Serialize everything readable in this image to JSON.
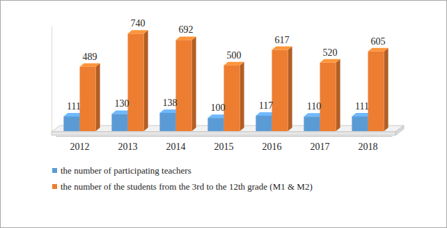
{
  "chart_data": {
    "type": "bar",
    "categories": [
      "2012",
      "2013",
      "2014",
      "2015",
      "2016",
      "2017",
      "2018"
    ],
    "series": [
      {
        "name": "the number of participating teachers",
        "color": "#5b9bd5",
        "values": [
          111,
          130,
          138,
          100,
          117,
          110,
          111
        ]
      },
      {
        "name": "the number of the students from the 3rd to the 12th grade (M1 & M2)",
        "color": "#ed7d31",
        "values": [
          489,
          740,
          692,
          500,
          617,
          520,
          605
        ]
      }
    ],
    "ylim": [
      0,
      800
    ],
    "tick_labels": "x",
    "data_labels": true,
    "legend": "bottom",
    "grid": false
  }
}
